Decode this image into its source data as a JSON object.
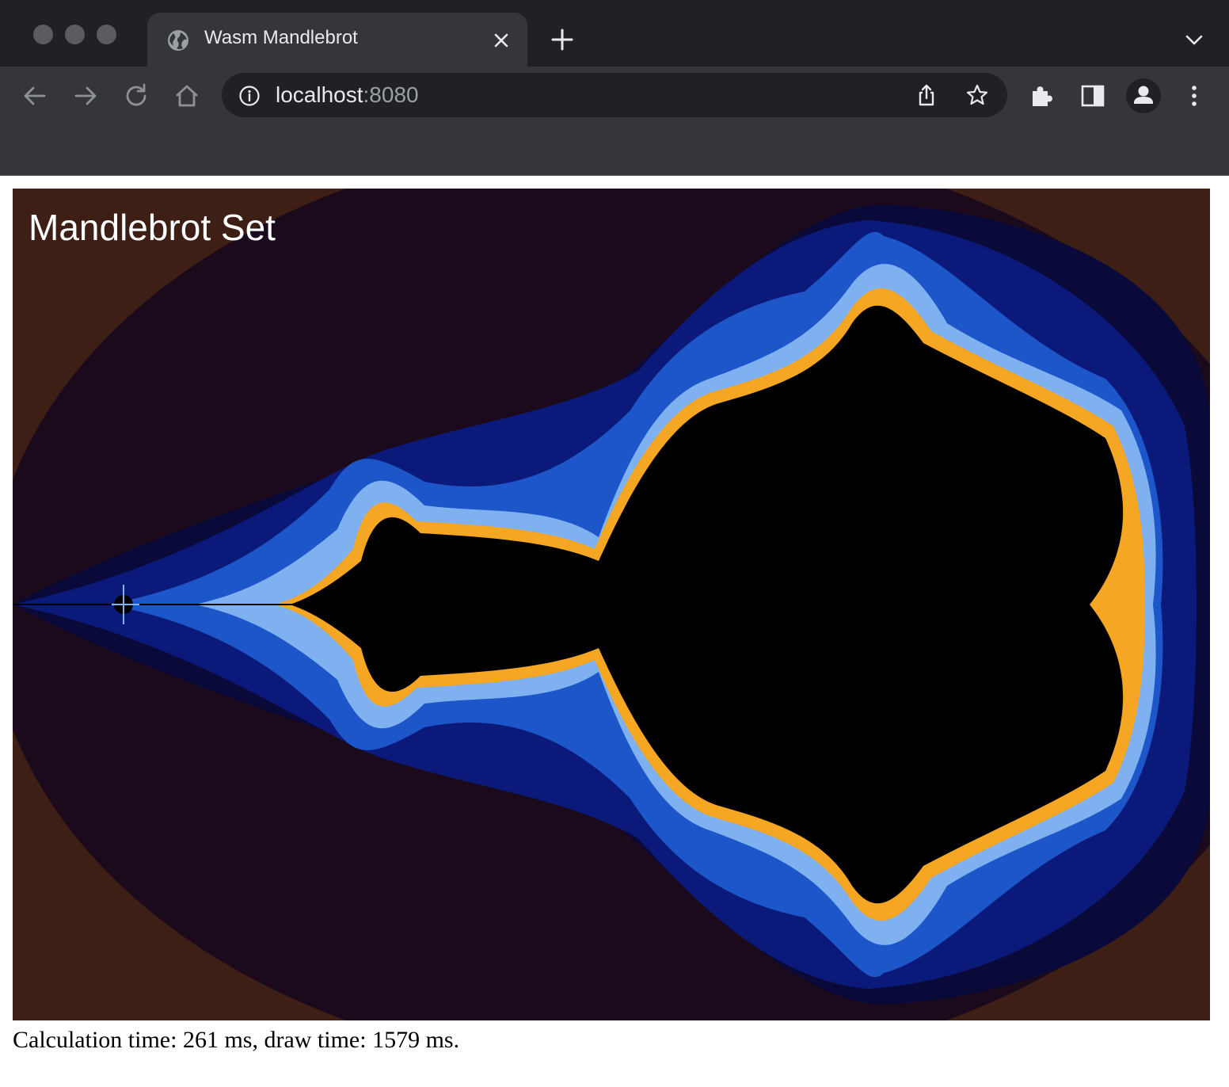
{
  "browser": {
    "tab_title": "Wasm Mandlebrot",
    "url_host": "localhost",
    "url_port": ":8080",
    "icons": [
      "globe-icon",
      "close-icon",
      "plus-icon",
      "chevron-down-icon",
      "back-arrow-icon",
      "forward-arrow-icon",
      "reload-icon",
      "home-icon",
      "info-icon",
      "share-icon",
      "star-icon",
      "extensions-puzzle-icon",
      "side-panel-icon",
      "profile-avatar-icon",
      "kebab-menu-icon"
    ],
    "colors": {
      "frame": "#202124",
      "toolbar": "#35363a",
      "omnibox": "#202124",
      "text": "#e8eaed",
      "muted": "#9aa0a6"
    }
  },
  "page": {
    "canvas_title": "Mandlebrot Set",
    "status_text": "Calculation time: 261 ms, draw time: 1579 ms.",
    "palette": {
      "outside": "#3d1f16",
      "band_1": "#1a0a1c",
      "band_2": "#0a0a3a",
      "band_3": "#0b1a7a",
      "band_4": "#1d56c9",
      "band_5": "#7fb0ef",
      "band_6": "#f5a623",
      "set": "#000000"
    }
  }
}
